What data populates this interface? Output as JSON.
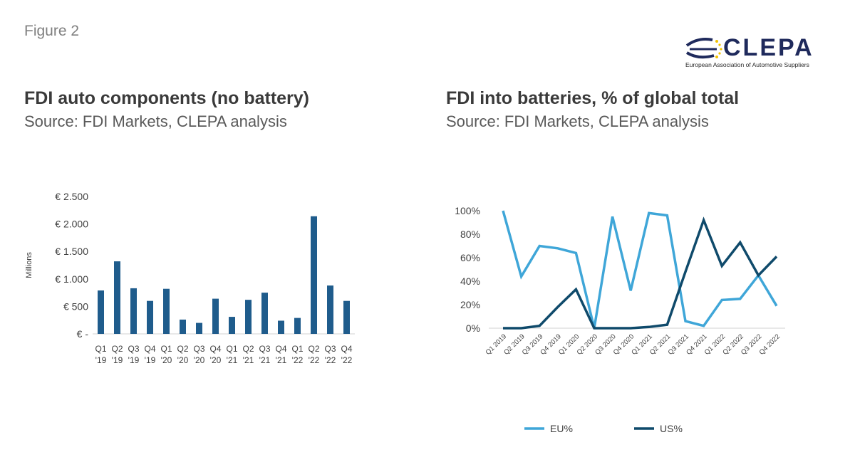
{
  "figure_label": "Figure 2",
  "logo": {
    "name": "CLEPA",
    "subtitle": "European Association of Automotive Suppliers"
  },
  "left_panel": {
    "title": "FDI auto components (no battery)",
    "source": "Source: FDI Markets, CLEPA analysis"
  },
  "right_panel": {
    "title": "FDI into batteries, % of global total",
    "source": "Source: FDI Markets, CLEPA analysis"
  },
  "colors": {
    "bar": "#1f5c8c",
    "eu": "#3fa6d8",
    "us": "#0f4a6b"
  },
  "chart_data": [
    {
      "type": "bar",
      "title": "FDI auto components (no battery)",
      "ylabel": "Millions",
      "ylim": [
        0,
        2500
      ],
      "yticks": [
        {
          "value": 0,
          "label": "€ -"
        },
        {
          "value": 500,
          "label": "€ 500"
        },
        {
          "value": 1000,
          "label": "€ 1.000"
        },
        {
          "value": 1500,
          "label": "€ 1.500"
        },
        {
          "value": 2000,
          "label": "€ 2.000"
        },
        {
          "value": 2500,
          "label": "€ 2.500"
        }
      ],
      "categories": [
        [
          "Q1",
          "'19"
        ],
        [
          "Q2",
          "'19"
        ],
        [
          "Q3",
          "'19"
        ],
        [
          "Q4",
          "'19"
        ],
        [
          "Q1",
          "'20"
        ],
        [
          "Q2",
          "'20"
        ],
        [
          "Q3",
          "'20"
        ],
        [
          "Q4",
          "'20"
        ],
        [
          "Q1",
          "'21"
        ],
        [
          "Q2",
          "'21"
        ],
        [
          "Q3",
          "'21"
        ],
        [
          "Q4",
          "'21"
        ],
        [
          "Q1",
          "'22"
        ],
        [
          "Q2",
          "'22"
        ],
        [
          "Q3",
          "'22"
        ],
        [
          "Q4",
          "'22"
        ]
      ],
      "values": [
        790,
        1320,
        830,
        600,
        820,
        260,
        200,
        640,
        310,
        620,
        750,
        240,
        290,
        2140,
        880,
        600
      ],
      "grid": false
    },
    {
      "type": "line",
      "title": "FDI into batteries, % of global total",
      "ylim": [
        0,
        100
      ],
      "yticks": [
        {
          "value": 0,
          "label": "0%"
        },
        {
          "value": 20,
          "label": "20%"
        },
        {
          "value": 40,
          "label": "40%"
        },
        {
          "value": 60,
          "label": "60%"
        },
        {
          "value": 80,
          "label": "80%"
        },
        {
          "value": 100,
          "label": "100%"
        }
      ],
      "categories": [
        "Q1 2019",
        "Q2 2019",
        "Q3 2019",
        "Q4 2019",
        "Q1 2020",
        "Q2 2020",
        "Q3 2020",
        "Q4 2020",
        "Q1 2021",
        "Q2 2021",
        "Q3 2021",
        "Q4 2021",
        "Q1 2022",
        "Q2 2022",
        "Q3 2022",
        "Q4 2022"
      ],
      "series": [
        {
          "name": "EU%",
          "values": [
            100,
            44,
            70,
            68,
            64,
            0,
            95,
            32,
            98,
            96,
            6,
            2,
            24,
            25,
            45,
            19
          ]
        },
        {
          "name": "US%",
          "values": [
            0,
            0,
            2,
            18,
            33,
            0,
            0,
            0,
            1,
            3,
            48,
            92,
            53,
            73,
            45,
            61
          ]
        }
      ],
      "legend": "bottom",
      "grid": false
    }
  ]
}
